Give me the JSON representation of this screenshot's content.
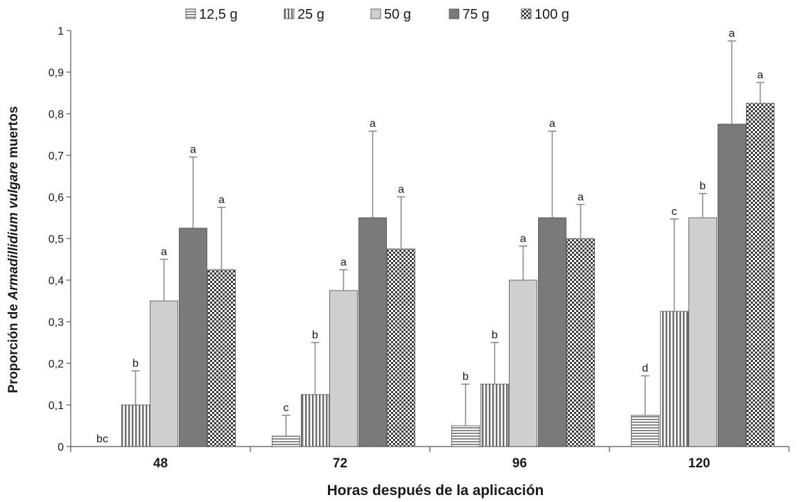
{
  "chart_data": {
    "type": "bar",
    "title": "",
    "xlabel": "Horas después de la aplicación",
    "ylabel_parts": [
      {
        "text": "Proporción de ",
        "italic": false
      },
      {
        "text": "Armadillidium vulgare",
        "italic": true
      },
      {
        "text": " muertos",
        "italic": false
      }
    ],
    "ylim": [
      0,
      1
    ],
    "yticks": [
      {
        "value": 0,
        "label": "0"
      },
      {
        "value": 0.1,
        "label": "0,1"
      },
      {
        "value": 0.2,
        "label": "0,2"
      },
      {
        "value": 0.3,
        "label": "0,3"
      },
      {
        "value": 0.4,
        "label": "0,4"
      },
      {
        "value": 0.5,
        "label": "0,5"
      },
      {
        "value": 0.6,
        "label": "0,6"
      },
      {
        "value": 0.7,
        "label": "0,7"
      },
      {
        "value": 0.8,
        "label": "0,8"
      },
      {
        "value": 0.9,
        "label": "0,9"
      },
      {
        "value": 1,
        "label": "1"
      }
    ],
    "categories": [
      "48",
      "72",
      "96",
      "120"
    ],
    "grid": false,
    "legend_position": "top",
    "series": [
      {
        "name": "12,5 g",
        "pattern": "hstripe",
        "values": [
          0,
          0.025,
          0.05,
          0.075
        ],
        "error": [
          0,
          0.05,
          0.1,
          0.095
        ],
        "letters": [
          "bc",
          "c",
          "b",
          "d"
        ]
      },
      {
        "name": "25 g",
        "pattern": "vstripe",
        "values": [
          0.1,
          0.125,
          0.15,
          0.325
        ],
        "error": [
          0.082,
          0.125,
          0.1,
          0.222
        ],
        "letters": [
          "b",
          "b",
          "b",
          "c"
        ]
      },
      {
        "name": "50 g",
        "pattern": "light",
        "values": [
          0.35,
          0.375,
          0.4,
          0.55
        ],
        "error": [
          0.1,
          0.05,
          0.082,
          0.058
        ],
        "letters": [
          "a",
          "a",
          "a",
          "b"
        ]
      },
      {
        "name": "75 g",
        "pattern": "dark",
        "values": [
          0.525,
          0.55,
          0.55,
          0.775
        ],
        "error": [
          0.171,
          0.208,
          0.208,
          0.2
        ],
        "letters": [
          "a",
          "a",
          "a",
          "a"
        ]
      },
      {
        "name": "100 g",
        "pattern": "checker",
        "values": [
          0.425,
          0.475,
          0.5,
          0.825
        ],
        "error": [
          0.15,
          0.125,
          0.082,
          0.05
        ],
        "letters": [
          "a",
          "a",
          "a",
          "a"
        ]
      }
    ],
    "colors": {
      "light": "#cfcfcf",
      "dark": "#7a7a7a",
      "stripe_dark": "#6a6a6a",
      "stripe_light": "#ffffff",
      "error_bar": "#8c8c8c",
      "axis": "#555555",
      "text": "#1a1a1a"
    }
  }
}
